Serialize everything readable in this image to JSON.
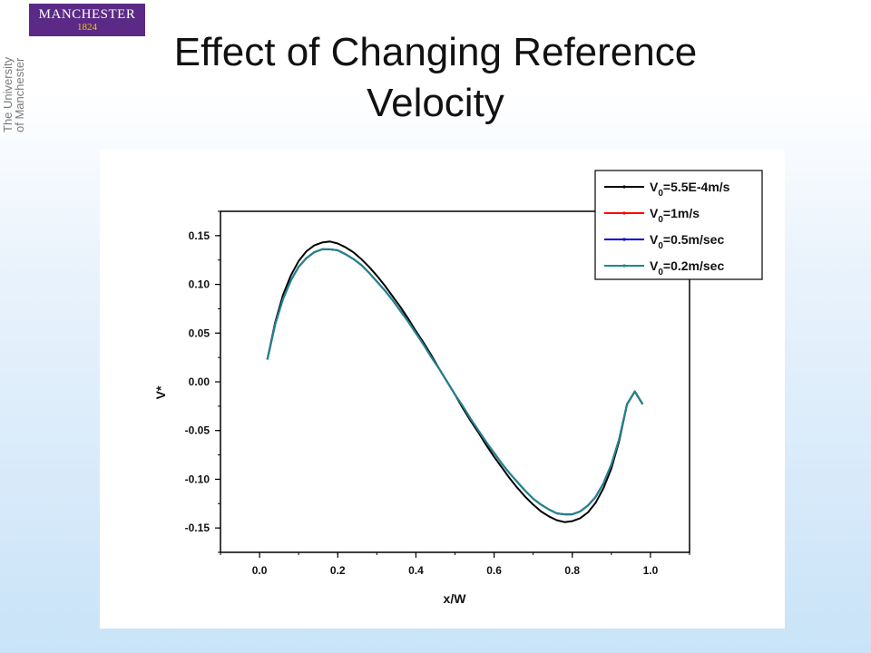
{
  "slide": {
    "title_line1": "Effect of Changing Reference",
    "title_line2": "Velocity"
  },
  "logo": {
    "main": "MANCHESTER",
    "year": "1824",
    "side_line1": "The University",
    "side_line2": "of Manchester"
  },
  "chart_data": {
    "type": "line",
    "xlabel": "x/W",
    "ylabel": "V*",
    "xlim": [
      -0.1,
      1.1
    ],
    "ylim": [
      -0.175,
      0.175
    ],
    "xticks": [
      "0.0",
      "0.2",
      "0.4",
      "0.6",
      "0.8",
      "1.0"
    ],
    "yticks": [
      "0.15",
      "0.10",
      "0.05",
      "0.00",
      "-0.05",
      "-0.10",
      "-0.15"
    ],
    "grid": false,
    "legend_position": "top-right",
    "series": [
      {
        "legend": [
          "V",
          "0",
          "=5.5E-4m/s"
        ],
        "color": "#000000",
        "x": [
          0.02,
          0.04,
          0.06,
          0.08,
          0.1,
          0.12,
          0.14,
          0.16,
          0.18,
          0.2,
          0.22,
          0.24,
          0.26,
          0.28,
          0.3,
          0.32,
          0.34,
          0.36,
          0.38,
          0.4,
          0.42,
          0.44,
          0.46,
          0.48,
          0.5,
          0.52,
          0.54,
          0.56,
          0.58,
          0.6,
          0.62,
          0.64,
          0.66,
          0.68,
          0.7,
          0.72,
          0.74,
          0.76,
          0.78,
          0.8,
          0.82,
          0.84,
          0.86,
          0.88,
          0.9,
          0.92,
          0.94,
          0.96,
          0.98
        ],
        "y": [
          0.023,
          0.061,
          0.089,
          0.109,
          0.124,
          0.134,
          0.14,
          0.143,
          0.144,
          0.142,
          0.138,
          0.133,
          0.126,
          0.118,
          0.109,
          0.099,
          0.088,
          0.077,
          0.065,
          0.052,
          0.04,
          0.027,
          0.013,
          0.0,
          -0.013,
          -0.027,
          -0.04,
          -0.052,
          -0.065,
          -0.077,
          -0.088,
          -0.099,
          -0.109,
          -0.118,
          -0.126,
          -0.133,
          -0.138,
          -0.142,
          -0.144,
          -0.143,
          -0.14,
          -0.134,
          -0.124,
          -0.109,
          -0.089,
          -0.061,
          -0.023,
          -0.01,
          -0.023
        ]
      },
      {
        "legend": [
          "V",
          "0",
          "=1m/s"
        ],
        "color": "#ff0000",
        "x": [
          0.02,
          0.04,
          0.06,
          0.08,
          0.1,
          0.12,
          0.14,
          0.16,
          0.18,
          0.2,
          0.22,
          0.24,
          0.26,
          0.28,
          0.3,
          0.32,
          0.34,
          0.36,
          0.38,
          0.4,
          0.42,
          0.44,
          0.46,
          0.48,
          0.5,
          0.52,
          0.54,
          0.56,
          0.58,
          0.6,
          0.62,
          0.64,
          0.66,
          0.68,
          0.7,
          0.72,
          0.74,
          0.76,
          0.78,
          0.8,
          0.82,
          0.84,
          0.86,
          0.88,
          0.9,
          0.92,
          0.94,
          0.96,
          0.98
        ],
        "y": [
          0.023,
          0.059,
          0.085,
          0.104,
          0.118,
          0.127,
          0.133,
          0.136,
          0.136,
          0.135,
          0.131,
          0.126,
          0.12,
          0.112,
          0.103,
          0.094,
          0.084,
          0.073,
          0.062,
          0.05,
          0.038,
          0.025,
          0.013,
          0.0,
          -0.013,
          -0.025,
          -0.038,
          -0.05,
          -0.062,
          -0.073,
          -0.084,
          -0.094,
          -0.103,
          -0.112,
          -0.12,
          -0.126,
          -0.131,
          -0.135,
          -0.136,
          -0.136,
          -0.133,
          -0.127,
          -0.118,
          -0.104,
          -0.085,
          -0.059,
          -0.023,
          -0.01,
          -0.023
        ]
      },
      {
        "legend": [
          "V",
          "0",
          "=0.5m/sec"
        ],
        "color": "#0000cc",
        "x": [
          0.02,
          0.04,
          0.06,
          0.08,
          0.1,
          0.12,
          0.14,
          0.16,
          0.18,
          0.2,
          0.22,
          0.24,
          0.26,
          0.28,
          0.3,
          0.32,
          0.34,
          0.36,
          0.38,
          0.4,
          0.42,
          0.44,
          0.46,
          0.48,
          0.5,
          0.52,
          0.54,
          0.56,
          0.58,
          0.6,
          0.62,
          0.64,
          0.66,
          0.68,
          0.7,
          0.72,
          0.74,
          0.76,
          0.78,
          0.8,
          0.82,
          0.84,
          0.86,
          0.88,
          0.9,
          0.92,
          0.94,
          0.96,
          0.98
        ],
        "y": [
          0.023,
          0.059,
          0.085,
          0.104,
          0.118,
          0.127,
          0.133,
          0.136,
          0.136,
          0.135,
          0.131,
          0.126,
          0.12,
          0.112,
          0.103,
          0.094,
          0.084,
          0.073,
          0.062,
          0.05,
          0.038,
          0.025,
          0.013,
          0.0,
          -0.013,
          -0.025,
          -0.038,
          -0.05,
          -0.062,
          -0.073,
          -0.084,
          -0.094,
          -0.103,
          -0.112,
          -0.12,
          -0.126,
          -0.131,
          -0.135,
          -0.136,
          -0.136,
          -0.133,
          -0.127,
          -0.118,
          -0.104,
          -0.085,
          -0.059,
          -0.023,
          -0.01,
          -0.023
        ]
      },
      {
        "legend": [
          "V",
          "0",
          "=0.2m/sec"
        ],
        "color": "#1a8a8a",
        "x": [
          0.02,
          0.04,
          0.06,
          0.08,
          0.1,
          0.12,
          0.14,
          0.16,
          0.18,
          0.2,
          0.22,
          0.24,
          0.26,
          0.28,
          0.3,
          0.32,
          0.34,
          0.36,
          0.38,
          0.4,
          0.42,
          0.44,
          0.46,
          0.48,
          0.5,
          0.52,
          0.54,
          0.56,
          0.58,
          0.6,
          0.62,
          0.64,
          0.66,
          0.68,
          0.7,
          0.72,
          0.74,
          0.76,
          0.78,
          0.8,
          0.82,
          0.84,
          0.86,
          0.88,
          0.9,
          0.92,
          0.94,
          0.96,
          0.98
        ],
        "y": [
          0.023,
          0.059,
          0.085,
          0.104,
          0.118,
          0.127,
          0.133,
          0.136,
          0.136,
          0.135,
          0.131,
          0.126,
          0.12,
          0.112,
          0.103,
          0.094,
          0.084,
          0.073,
          0.062,
          0.05,
          0.038,
          0.025,
          0.013,
          0.0,
          -0.013,
          -0.025,
          -0.038,
          -0.05,
          -0.062,
          -0.073,
          -0.084,
          -0.094,
          -0.103,
          -0.112,
          -0.12,
          -0.126,
          -0.131,
          -0.135,
          -0.136,
          -0.136,
          -0.133,
          -0.127,
          -0.118,
          -0.104,
          -0.085,
          -0.059,
          -0.023,
          -0.01,
          -0.023
        ]
      }
    ]
  }
}
